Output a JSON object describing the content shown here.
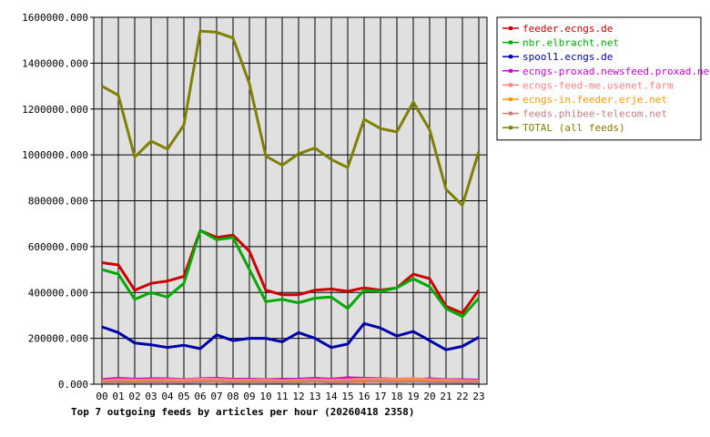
{
  "chart_data": {
    "type": "line",
    "title": "Top 7 outgoing feeds by articles per hour (20260418 2358)",
    "xlabel": "",
    "ylabel": "",
    "categories": [
      "00",
      "01",
      "02",
      "03",
      "04",
      "05",
      "06",
      "07",
      "08",
      "09",
      "10",
      "11",
      "12",
      "13",
      "14",
      "15",
      "16",
      "17",
      "18",
      "19",
      "20",
      "21",
      "22",
      "23"
    ],
    "ylim": [
      0,
      1600000
    ],
    "yticks": [
      0,
      200000,
      400000,
      600000,
      800000,
      1000000,
      1200000,
      1400000,
      1600000
    ],
    "ytick_labels": [
      "0.000",
      "200000.000",
      "400000.000",
      "600000.000",
      "800000.000",
      "1000000.000",
      "1200000.000",
      "1400000.000",
      "1600000.000"
    ],
    "grid": true,
    "legend_position": "right",
    "background": "#e0e0e0",
    "series": [
      {
        "name": "feeder.ecngs.de",
        "color": "#cc0000",
        "values": [
          530000,
          520000,
          410000,
          440000,
          450000,
          470000,
          670000,
          640000,
          650000,
          580000,
          410000,
          390000,
          390000,
          410000,
          415000,
          405000,
          420000,
          410000,
          420000,
          480000,
          460000,
          340000,
          310000,
          410000
        ]
      },
      {
        "name": "nbr.elbracht.net",
        "color": "#00aa00",
        "values": [
          500000,
          480000,
          370000,
          400000,
          380000,
          440000,
          670000,
          630000,
          640000,
          500000,
          360000,
          370000,
          355000,
          375000,
          380000,
          330000,
          410000,
          405000,
          420000,
          460000,
          425000,
          330000,
          295000,
          375000
        ]
      },
      {
        "name": "spool1.ecngs.de",
        "color": "#0000aa",
        "values": [
          250000,
          225000,
          180000,
          172000,
          160000,
          170000,
          155000,
          215000,
          190000,
          200000,
          200000,
          185000,
          225000,
          200000,
          160000,
          175000,
          265000,
          245000,
          210000,
          230000,
          190000,
          150000,
          165000,
          205000
        ]
      },
      {
        "name": "ecngs-proxad.newsfeed.proxad.net",
        "color": "#cc00cc",
        "values": [
          20000,
          26000,
          22000,
          24000,
          24000,
          20000,
          24000,
          26000,
          22000,
          22000,
          20000,
          22000,
          22000,
          26000,
          22000,
          28000,
          26000,
          24000,
          22000,
          20000,
          24000,
          20000,
          20000,
          18000
        ]
      },
      {
        "name": "ecngs-feed-me.usenet.farm",
        "color": "#ff8080",
        "values": [
          15000,
          20000,
          18000,
          19000,
          20000,
          18000,
          22000,
          22000,
          18000,
          18000,
          18000,
          16000,
          18000,
          20000,
          18000,
          20000,
          22000,
          22000,
          22000,
          25000,
          20000,
          18000,
          16000,
          15000
        ]
      },
      {
        "name": "ecngs-in.feeder.erje.net",
        "color": "#ff9900",
        "values": [
          10000,
          12000,
          12000,
          14000,
          12000,
          10000,
          12000,
          15000,
          10000,
          12000,
          12000,
          10000,
          12000,
          14000,
          10000,
          12000,
          14000,
          15000,
          14000,
          18000,
          14000,
          12000,
          10000,
          10000
        ]
      },
      {
        "name": "feeds.phibee-telecom.net",
        "color": "#c08080",
        "values": [
          8000,
          10000,
          9000,
          10000,
          9000,
          8000,
          10000,
          12000,
          8000,
          10000,
          9000,
          8000,
          10000,
          12000,
          8000,
          10000,
          12000,
          12000,
          10000,
          12000,
          10000,
          9000,
          8000,
          8000
        ]
      },
      {
        "name": "TOTAL (all feeds)",
        "color": "#808000",
        "values": [
          1300000,
          1260000,
          990000,
          1060000,
          1025000,
          1130000,
          1540000,
          1535000,
          1510000,
          1310000,
          995000,
          955000,
          1005000,
          1030000,
          980000,
          945000,
          1155000,
          1115000,
          1100000,
          1230000,
          1110000,
          850000,
          780000,
          1015000
        ]
      }
    ]
  }
}
